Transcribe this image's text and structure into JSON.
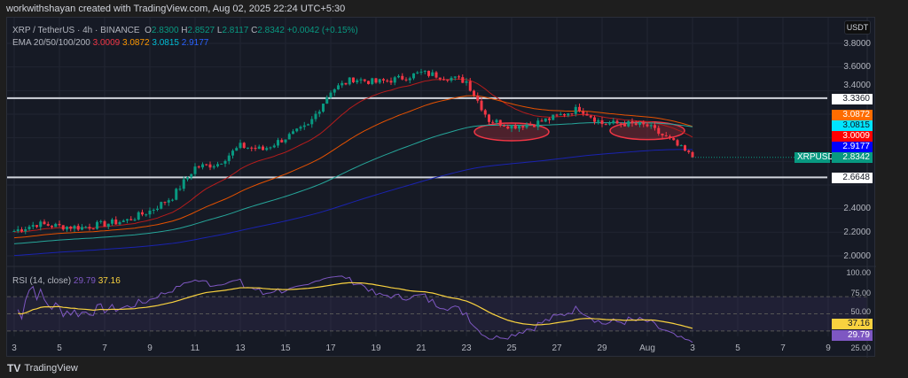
{
  "credit": "workwithshayan created with TradingView.com, Aug 02, 2025 22:24 UTC+5:30",
  "legend": {
    "symbol": "XRP / TetherUS · 4h · BINANCE",
    "o_label": "O",
    "o": "2.8300",
    "h_label": "H",
    "h": "2.8527",
    "l_label": "L",
    "l": "2.8117",
    "c_label": "C",
    "c": "2.8342",
    "change": "+0.0042 (+0.15%)",
    "ema_label": "EMA 20/50/100/200",
    "ema20": "3.0009",
    "ema50": "3.0872",
    "ema100": "3.0815",
    "ema200": "2.9177"
  },
  "currency_button": "USDT",
  "price_axis": [
    "3.8000",
    "3.6000",
    "3.4000",
    "2.4000",
    "2.2000",
    "2.0000"
  ],
  "price_tags": {
    "res": "3.3360",
    "ema50": "3.0872",
    "ema100": "3.0815",
    "ema20": "3.0009",
    "ema200": "2.9177",
    "symbol": "XRPUSDT",
    "last": "2.8342",
    "sup": "2.6648"
  },
  "rsi": {
    "label": "RSI (14, close)",
    "value": "29.79",
    "ma": "37.16",
    "axis": [
      "100.00",
      "75.00",
      "50.00",
      "25.00"
    ]
  },
  "time_axis": [
    "3",
    "5",
    "7",
    "9",
    "11",
    "13",
    "15",
    "17",
    "19",
    "21",
    "23",
    "25",
    "27",
    "29",
    "Aug",
    "3",
    "5",
    "7",
    "9"
  ],
  "footer": "TradingView",
  "colors": {
    "up": "#089981",
    "down": "#f23645",
    "ema20": "#b71c1c",
    "ema50": "#e65100",
    "ema100": "#26a69a",
    "ema200": "#1a23b0",
    "rsi": "#7e57c2",
    "rsi_ma": "#f9d23f"
  },
  "chart_data": {
    "type": "candlestick",
    "interval": "4h",
    "x_range": [
      "Jul 3",
      "Aug 2"
    ],
    "ylim": [
      1.9,
      3.9
    ],
    "horizontal_levels": [
      3.336,
      2.6648
    ],
    "daily_closes": {
      "dates": [
        "Jul 3",
        "Jul 4",
        "Jul 5",
        "Jul 6",
        "Jul 7",
        "Jul 8",
        "Jul 9",
        "Jul 10",
        "Jul 11",
        "Jul 12",
        "Jul 13",
        "Jul 14",
        "Jul 15",
        "Jul 16",
        "Jul 17",
        "Jul 18",
        "Jul 19",
        "Jul 20",
        "Jul 21",
        "Jul 22",
        "Jul 23",
        "Jul 24",
        "Jul 25",
        "Jul 26",
        "Jul 27",
        "Jul 28",
        "Jul 29",
        "Jul 30",
        "Jul 31",
        "Aug 1",
        "Aug 2"
      ],
      "values": [
        2.21,
        2.27,
        2.25,
        2.24,
        2.27,
        2.3,
        2.38,
        2.5,
        2.75,
        2.78,
        2.93,
        2.9,
        3.0,
        3.1,
        3.4,
        3.5,
        3.47,
        3.5,
        3.55,
        3.52,
        3.48,
        3.15,
        3.1,
        3.12,
        3.18,
        3.25,
        3.12,
        3.12,
        3.1,
        2.98,
        2.834
      ]
    },
    "highlighted_zones": [
      {
        "from": "Jul 24",
        "to": "Jul 26",
        "price": 3.05
      },
      {
        "from": "Jul 30",
        "to": "Aug 1",
        "price": 3.06
      }
    ]
  }
}
